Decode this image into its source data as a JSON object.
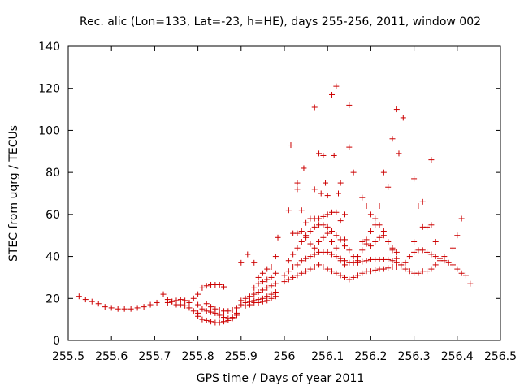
{
  "chart_data": {
    "type": "scatter",
    "title": "Rec. alic (Lon=133, Lat=-23, h=HE), days 255-256, 2011, window 002",
    "xlabel": "GPS time / Days of year 2011",
    "ylabel": "STEC from uqrg / TECUs",
    "xlim": [
      255.5,
      256.5
    ],
    "ylim": [
      0,
      140
    ],
    "x_ticks": [
      "255.5",
      "255.6",
      "255.7",
      "255.8",
      "255.9",
      "256",
      "256.1",
      "256.2",
      "256.3",
      "256.4",
      "256.5"
    ],
    "y_ticks": [
      "0",
      "20",
      "40",
      "60",
      "80",
      "100",
      "120",
      "140"
    ],
    "grid": false,
    "marker": "+",
    "color": "#cc0000",
    "points": [
      [
        255.525,
        21
      ],
      [
        255.54,
        19.5
      ],
      [
        255.555,
        18.5
      ],
      [
        255.57,
        17.5
      ],
      [
        255.585,
        16
      ],
      [
        255.6,
        15.5
      ],
      [
        255.615,
        15
      ],
      [
        255.63,
        15
      ],
      [
        255.645,
        15
      ],
      [
        255.66,
        15.5
      ],
      [
        255.675,
        16
      ],
      [
        255.69,
        17
      ],
      [
        255.705,
        18
      ],
      [
        255.72,
        22
      ],
      [
        255.73,
        19.5
      ],
      [
        255.74,
        18.5
      ],
      [
        255.75,
        19
      ],
      [
        255.76,
        19.5
      ],
      [
        255.77,
        19
      ],
      [
        255.78,
        18
      ],
      [
        255.73,
        18
      ],
      [
        255.74,
        18.5
      ],
      [
        255.75,
        17
      ],
      [
        255.76,
        17
      ],
      [
        255.77,
        16.5
      ],
      [
        255.78,
        15.5
      ],
      [
        255.79,
        14
      ],
      [
        255.8,
        13
      ],
      [
        255.79,
        20
      ],
      [
        255.8,
        22
      ],
      [
        255.81,
        25
      ],
      [
        255.82,
        26
      ],
      [
        255.83,
        26.5
      ],
      [
        255.84,
        26.5
      ],
      [
        255.85,
        26.5
      ],
      [
        255.86,
        25.5
      ],
      [
        255.8,
        17
      ],
      [
        255.81,
        15
      ],
      [
        255.82,
        14
      ],
      [
        255.83,
        13.5
      ],
      [
        255.84,
        13
      ],
      [
        255.85,
        12
      ],
      [
        255.86,
        11
      ],
      [
        255.87,
        10.5
      ],
      [
        255.88,
        10.5
      ],
      [
        255.89,
        12
      ],
      [
        255.8,
        11.5
      ],
      [
        255.81,
        10
      ],
      [
        255.82,
        9.5
      ],
      [
        255.83,
        9
      ],
      [
        255.84,
        8.5
      ],
      [
        255.85,
        8.5
      ],
      [
        255.86,
        9
      ],
      [
        255.87,
        9.5
      ],
      [
        255.88,
        11
      ],
      [
        255.89,
        13
      ],
      [
        255.82,
        17.5
      ],
      [
        255.83,
        16
      ],
      [
        255.84,
        15
      ],
      [
        255.85,
        14.5
      ],
      [
        255.86,
        14
      ],
      [
        255.87,
        14
      ],
      [
        255.88,
        14.5
      ],
      [
        255.89,
        15.5
      ],
      [
        255.89,
        14.5
      ],
      [
        255.9,
        17
      ],
      [
        255.91,
        18
      ],
      [
        255.92,
        18.5
      ],
      [
        255.93,
        19
      ],
      [
        255.94,
        19.5
      ],
      [
        255.95,
        20
      ],
      [
        255.96,
        21
      ],
      [
        255.97,
        22
      ],
      [
        255.98,
        23
      ],
      [
        255.9,
        19
      ],
      [
        255.91,
        20
      ],
      [
        255.92,
        21
      ],
      [
        255.93,
        22
      ],
      [
        255.94,
        23
      ],
      [
        255.95,
        24
      ],
      [
        255.96,
        25
      ],
      [
        255.97,
        26
      ],
      [
        255.98,
        27
      ],
      [
        255.9,
        37
      ],
      [
        255.915,
        41
      ],
      [
        255.93,
        37
      ],
      [
        255.94,
        30
      ],
      [
        255.95,
        32
      ],
      [
        255.96,
        34
      ],
      [
        255.97,
        35
      ],
      [
        255.98,
        40
      ],
      [
        255.985,
        49
      ],
      [
        255.91,
        16.5
      ],
      [
        255.92,
        17
      ],
      [
        255.93,
        18
      ],
      [
        255.94,
        18
      ],
      [
        255.95,
        18.5
      ],
      [
        255.96,
        19
      ],
      [
        255.97,
        20
      ],
      [
        255.98,
        21
      ],
      [
        255.93,
        25
      ],
      [
        255.94,
        27
      ],
      [
        255.95,
        28
      ],
      [
        255.96,
        29
      ],
      [
        255.97,
        30
      ],
      [
        255.98,
        32
      ],
      [
        256.01,
        62
      ],
      [
        256.015,
        93
      ],
      [
        256.03,
        75
      ],
      [
        256.03,
        72
      ],
      [
        256.045,
        82
      ],
      [
        256.04,
        62
      ],
      [
        256.05,
        56
      ],
      [
        256.06,
        58
      ],
      [
        256.07,
        111
      ],
      [
        256.07,
        72
      ],
      [
        256.08,
        89
      ],
      [
        256.085,
        70
      ],
      [
        256.09,
        88
      ],
      [
        256.095,
        75
      ],
      [
        256.1,
        69
      ],
      [
        256.11,
        117
      ],
      [
        256.12,
        121
      ],
      [
        256.115,
        88
      ],
      [
        256.125,
        70
      ],
      [
        256.13,
        75
      ],
      [
        256.14,
        60
      ],
      [
        256.15,
        112
      ],
      [
        256.15,
        92
      ],
      [
        256.16,
        80
      ],
      [
        256.18,
        68
      ],
      [
        256.19,
        64
      ],
      [
        256.2,
        60
      ],
      [
        256.21,
        58
      ],
      [
        256.22,
        64
      ],
      [
        256.23,
        80
      ],
      [
        256.24,
        73
      ],
      [
        256.25,
        96
      ],
      [
        256.26,
        110
      ],
      [
        256.265,
        89
      ],
      [
        256.275,
        106
      ],
      [
        256.3,
        77
      ],
      [
        256.31,
        64
      ],
      [
        256.32,
        66
      ],
      [
        256.34,
        86
      ],
      [
        256.3,
        47
      ],
      [
        256.32,
        54
      ],
      [
        256.33,
        54
      ],
      [
        256.34,
        55
      ],
      [
        256.35,
        47
      ],
      [
        256.37,
        40
      ],
      [
        256.39,
        44
      ],
      [
        256.4,
        50
      ],
      [
        256.41,
        58
      ],
      [
        256.42,
        31
      ],
      [
        256.43,
        27
      ],
      [
        256.0,
        28
      ],
      [
        256.01,
        29
      ],
      [
        256.02,
        30
      ],
      [
        256.03,
        31
      ],
      [
        256.04,
        32
      ],
      [
        256.05,
        33
      ],
      [
        256.06,
        34
      ],
      [
        256.07,
        35
      ],
      [
        256.08,
        36
      ],
      [
        256.09,
        35
      ],
      [
        256.1,
        34
      ],
      [
        256.11,
        33
      ],
      [
        256.12,
        32
      ],
      [
        256.13,
        31
      ],
      [
        256.14,
        30
      ],
      [
        256.15,
        29
      ],
      [
        256.16,
        30
      ],
      [
        256.17,
        31
      ],
      [
        256.18,
        32
      ],
      [
        256.19,
        33
      ],
      [
        256.2,
        33
      ],
      [
        256.21,
        33.5
      ],
      [
        256.22,
        34
      ],
      [
        256.23,
        34
      ],
      [
        256.24,
        34.5
      ],
      [
        256.25,
        35
      ],
      [
        256.26,
        35
      ],
      [
        256.27,
        35
      ],
      [
        256.28,
        34
      ],
      [
        256.29,
        33
      ],
      [
        256.3,
        32
      ],
      [
        256.31,
        32
      ],
      [
        256.32,
        33
      ],
      [
        256.33,
        33
      ],
      [
        256.34,
        34
      ],
      [
        256.35,
        36
      ],
      [
        256.36,
        38
      ],
      [
        256.0,
        31
      ],
      [
        256.01,
        33
      ],
      [
        256.02,
        35
      ],
      [
        256.03,
        36
      ],
      [
        256.04,
        38
      ],
      [
        256.05,
        39
      ],
      [
        256.06,
        40
      ],
      [
        256.07,
        41
      ],
      [
        256.08,
        42
      ],
      [
        256.09,
        42
      ],
      [
        256.1,
        42
      ],
      [
        256.11,
        41
      ],
      [
        256.12,
        40
      ],
      [
        256.13,
        39
      ],
      [
        256.14,
        38
      ],
      [
        256.15,
        37
      ],
      [
        256.16,
        37
      ],
      [
        256.17,
        37
      ],
      [
        256.18,
        37.5
      ],
      [
        256.19,
        38
      ],
      [
        256.2,
        38.5
      ],
      [
        256.21,
        38.5
      ],
      [
        256.22,
        38.5
      ],
      [
        256.23,
        38.5
      ],
      [
        256.24,
        38.5
      ],
      [
        256.25,
        38
      ],
      [
        256.26,
        37
      ],
      [
        256.27,
        36
      ],
      [
        256.28,
        37
      ],
      [
        256.29,
        40
      ],
      [
        256.3,
        42
      ],
      [
        256.31,
        43
      ],
      [
        256.32,
        43
      ],
      [
        256.33,
        42
      ],
      [
        256.34,
        41
      ],
      [
        256.35,
        40
      ],
      [
        256.36,
        39
      ],
      [
        256.37,
        38
      ],
      [
        256.38,
        37
      ],
      [
        256.39,
        36
      ],
      [
        256.4,
        34
      ],
      [
        256.41,
        32
      ],
      [
        256.01,
        38
      ],
      [
        256.02,
        41
      ],
      [
        256.03,
        44
      ],
      [
        256.04,
        47
      ],
      [
        256.05,
        50
      ],
      [
        256.06,
        52
      ],
      [
        256.07,
        54
      ],
      [
        256.08,
        55
      ],
      [
        256.09,
        55
      ],
      [
        256.1,
        54
      ],
      [
        256.11,
        52
      ],
      [
        256.12,
        50
      ],
      [
        256.13,
        48
      ],
      [
        256.14,
        45
      ],
      [
        256.15,
        43
      ],
      [
        256.16,
        40
      ],
      [
        256.17,
        38
      ],
      [
        256.02,
        51
      ],
      [
        256.03,
        51
      ],
      [
        256.04,
        52
      ],
      [
        256.05,
        49
      ],
      [
        256.06,
        46
      ],
      [
        256.07,
        44
      ],
      [
        256.08,
        47
      ],
      [
        256.09,
        49
      ],
      [
        256.1,
        51
      ],
      [
        256.11,
        47
      ],
      [
        256.12,
        44
      ],
      [
        256.13,
        38
      ],
      [
        256.14,
        36
      ],
      [
        256.07,
        58
      ],
      [
        256.08,
        58
      ],
      [
        256.09,
        59
      ],
      [
        256.1,
        60
      ],
      [
        256.11,
        61
      ],
      [
        256.12,
        61
      ],
      [
        256.13,
        57
      ],
      [
        256.14,
        48
      ],
      [
        256.17,
        40
      ],
      [
        256.18,
        43
      ],
      [
        256.19,
        48
      ],
      [
        256.2,
        52
      ],
      [
        256.21,
        55
      ],
      [
        256.22,
        55
      ],
      [
        256.23,
        52
      ],
      [
        256.24,
        47
      ],
      [
        256.25,
        44
      ],
      [
        256.26,
        42
      ],
      [
        256.18,
        47
      ],
      [
        256.19,
        46
      ],
      [
        256.2,
        45
      ],
      [
        256.21,
        47
      ],
      [
        256.22,
        49
      ],
      [
        256.23,
        50
      ],
      [
        256.24,
        47
      ],
      [
        256.25,
        43
      ],
      [
        256.26,
        39
      ],
      [
        256.27,
        36
      ]
    ]
  }
}
